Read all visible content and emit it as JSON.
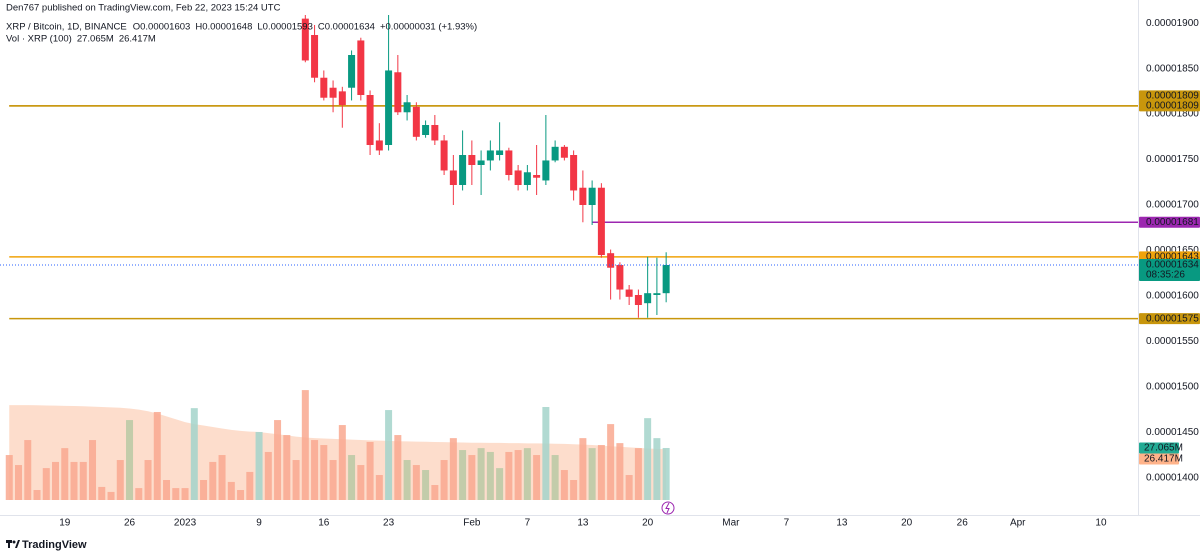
{
  "chart_data": {
    "type": "candlestick",
    "header": {
      "publisher": "Den767 published on TradingView.com, Feb 22, 2023 15:24 UTC",
      "symbol": "XRP / Bitcoin, 1D, BINANCE",
      "ohlc": [
        "O0.00001603",
        "H0.00001648",
        "L0.00001593",
        "C0.00001634",
        "+0.00000031 (+1.93%)"
      ],
      "volume_title": "Vol · XRP (100)",
      "volume_label": "27.065M",
      "volume_ma_label": "26.417M"
    },
    "x": [
      "2023-01-14",
      "2023-01-15",
      "2023-01-16",
      "2023-01-17",
      "2023-01-18",
      "2023-01-19",
      "2023-01-20",
      "2023-01-21",
      "2023-01-22",
      "2023-01-23",
      "2023-01-24",
      "2023-01-25",
      "2023-01-26",
      "2023-01-27",
      "2023-01-28",
      "2023-01-29",
      "2023-01-30",
      "2023-01-31",
      "2023-02-01",
      "2023-02-02",
      "2023-02-03",
      "2023-02-04",
      "2023-02-05",
      "2023-02-06",
      "2023-02-07",
      "2023-02-08",
      "2023-02-09",
      "2023-02-10",
      "2023-02-11",
      "2023-02-12",
      "2023-02-13",
      "2023-02-14",
      "2023-02-15",
      "2023-02-16",
      "2023-02-17",
      "2023-02-18",
      "2023-02-19",
      "2023-02-20",
      "2023-02-21",
      "2023-02-22"
    ],
    "open": [
      1.905e-05,
      1.887e-05,
      1.84e-05,
      1.829e-05,
      1.825e-05,
      1.829e-05,
      1.881e-05,
      1.821e-05,
      1.771e-05,
      1.766e-05,
      1.846e-05,
      1.802e-05,
      1.808e-05,
      1.777e-05,
      1.788e-05,
      1.771e-05,
      1.738e-05,
      1.722e-05,
      1.755e-05,
      1.744e-05,
      1.749e-05,
      1.755e-05,
      1.76e-05,
      1.738e-05,
      1.722e-05,
      1.733e-05,
      1.727e-05,
      1.749e-05,
      1.764e-05,
      1.755e-05,
      1.719e-05,
      1.7e-05,
      1.719e-05,
      1.647e-05,
      1.634e-05,
      1.607e-05,
      1.601e-05,
      1.592e-05,
      1.601e-05,
      1.603e-05
    ],
    "high": [
      1.92e-05,
      1.898e-05,
      1.848e-05,
      1.837e-05,
      1.83e-05,
      1.87e-05,
      1.884e-05,
      1.826e-05,
      1.79e-05,
      1.915e-05,
      1.865e-05,
      1.821e-05,
      1.813e-05,
      1.793e-05,
      1.799e-05,
      1.777e-05,
      1.755e-05,
      1.782e-05,
      1.771e-05,
      1.76e-05,
      1.771e-05,
      1.791e-05,
      1.763e-05,
      1.744e-05,
      1.744e-05,
      1.766e-05,
      1.799e-05,
      1.771e-05,
      1.766e-05,
      1.76e-05,
      1.738e-05,
      1.727e-05,
      1.724e-05,
      1.651e-05,
      1.637e-05,
      1.612e-05,
      1.607e-05,
      1.643e-05,
      1.642e-05,
      1.648e-05
    ],
    "low": [
      1.857e-05,
      1.835e-05,
      1.815e-05,
      1.802e-05,
      1.785e-05,
      1.815e-05,
      1.815e-05,
      1.755e-05,
      1.755e-05,
      1.76e-05,
      1.799e-05,
      1.793e-05,
      1.771e-05,
      1.774e-05,
      1.766e-05,
      1.733e-05,
      1.7e-05,
      1.716e-05,
      1.722e-05,
      1.711e-05,
      1.738e-05,
      1.749e-05,
      1.727e-05,
      1.716e-05,
      1.716e-05,
      1.711e-05,
      1.722e-05,
      1.747e-05,
      1.749e-05,
      1.705e-05,
      1.681e-05,
      1.678e-05,
      1.642e-05,
      1.596e-05,
      1.596e-05,
      1.59e-05,
      1.576e-05,
      1.576e-05,
      1.579e-05,
      1.593e-05
    ],
    "close": [
      1.859e-05,
      1.84e-05,
      1.818e-05,
      1.818e-05,
      1.81e-05,
      1.865e-05,
      1.821e-05,
      1.766e-05,
      1.76e-05,
      1.848e-05,
      1.802e-05,
      1.813e-05,
      1.775e-05,
      1.788e-05,
      1.771e-05,
      1.738e-05,
      1.722e-05,
      1.755e-05,
      1.744e-05,
      1.749e-05,
      1.76e-05,
      1.76e-05,
      1.733e-05,
      1.722e-05,
      1.736e-05,
      1.73e-05,
      1.749e-05,
      1.764e-05,
      1.752e-05,
      1.716e-05,
      1.7e-05,
      1.719e-05,
      1.645e-05,
      1.631e-05,
      1.607e-05,
      1.599e-05,
      1.59e-05,
      1.603e-05,
      1.603e-05,
      1.634e-05
    ],
    "up_color": "#089981",
    "down_color": "#f23645",
    "volume": {
      "x": [
        "2022-12-13",
        "2022-12-14",
        "2022-12-15",
        "2022-12-16",
        "2022-12-17",
        "2022-12-18",
        "2022-12-19",
        "2022-12-20",
        "2022-12-21",
        "2022-12-22",
        "2022-12-23",
        "2022-12-24",
        "2022-12-25",
        "2022-12-26",
        "2022-12-27",
        "2022-12-28",
        "2022-12-29",
        "2022-12-30",
        "2022-12-31",
        "2023-01-01",
        "2023-01-02",
        "2023-01-03",
        "2023-01-04",
        "2023-01-05",
        "2023-01-06",
        "2023-01-07",
        "2023-01-08",
        "2023-01-09",
        "2023-01-10",
        "2023-01-11",
        "2023-01-12",
        "2023-01-13",
        "2023-01-14",
        "2023-01-15",
        "2023-01-16",
        "2023-01-17",
        "2023-01-18",
        "2023-01-19",
        "2023-01-20",
        "2023-01-21",
        "2023-01-22",
        "2023-01-23",
        "2023-01-24",
        "2023-01-25",
        "2023-01-26",
        "2023-01-27",
        "2023-01-28",
        "2023-01-29",
        "2023-01-30",
        "2023-01-31",
        "2023-02-01",
        "2023-02-02",
        "2023-02-03",
        "2023-02-04",
        "2023-02-05",
        "2023-02-06",
        "2023-02-07",
        "2023-02-08",
        "2023-02-09",
        "2023-02-10",
        "2023-02-11",
        "2023-02-12",
        "2023-02-13",
        "2023-02-14",
        "2023-02-15",
        "2023-02-16",
        "2023-02-17",
        "2023-02-18",
        "2023-02-19",
        "2023-02-20",
        "2023-02-21",
        "2023-02-22"
      ],
      "values": [
        23400000,
        18200000,
        31200000,
        5200000,
        16600000,
        19800000,
        27000000,
        19800000,
        19800000,
        31200000,
        6800000,
        4200000,
        20800000,
        41600000,
        6200000,
        20800000,
        45800000,
        10400000,
        6200000,
        6200000,
        47800000,
        10400000,
        19800000,
        23400000,
        9400000,
        5200000,
        14600000,
        35400000,
        25000000,
        41600000,
        33800000,
        20800000,
        57200000,
        31200000,
        28600000,
        20800000,
        39000000,
        23400000,
        18200000,
        30200000,
        13000000,
        46800000,
        33800000,
        20800000,
        18200000,
        15600000,
        7800000,
        20800000,
        32200000,
        26000000,
        23400000,
        27000000,
        25000000,
        16600000,
        25000000,
        26000000,
        27000000,
        23400000,
        48400000,
        23400000,
        15600000,
        10400000,
        32200000,
        27000000,
        28600000,
        39500000,
        29600000,
        13000000,
        27000000,
        42600000,
        32200000,
        27065000
      ],
      "colors": [
        "#f9a88f",
        "#f9a88f",
        "#f9a88f",
        "#f9a88f",
        "#f9a88f",
        "#f9a88f",
        "#f9a88f",
        "#f9a88f",
        "#f9a88f",
        "#f9a88f",
        "#f9a88f",
        "#f9a88f",
        "#f9a88f",
        "#b9c9a3",
        "#f9a88f",
        "#f9a88f",
        "#f9a88f",
        "#f9a88f",
        "#f9a88f",
        "#f9a88f",
        "#a3d4ca",
        "#f9a88f",
        "#f9a88f",
        "#f9a88f",
        "#f9a88f",
        "#f9a88f",
        "#f9a88f",
        "#a3d4ca",
        "#f9a88f",
        "#f9a88f",
        "#f9a88f",
        "#f9a88f",
        "#f9a88f",
        "#f9a88f",
        "#f9a88f",
        "#f9a88f",
        "#f9a88f",
        "#b9c9a3",
        "#f9a88f",
        "#f9a88f",
        "#f9a88f",
        "#a3d4ca",
        "#f9a88f",
        "#b9c9a3",
        "#f9a88f",
        "#b9c9a3",
        "#f9a88f",
        "#f9a88f",
        "#f9a88f",
        "#b9c9a3",
        "#f9a88f",
        "#b9c9a3",
        "#b9c9a3",
        "#b9c9a3",
        "#f9a88f",
        "#f9a88f",
        "#b9c9a3",
        "#f9a88f",
        "#a3d4ca",
        "#b9c9a3",
        "#f9a88f",
        "#f9a88f",
        "#f9a88f",
        "#b9c9a3",
        "#f9a88f",
        "#f9a88f",
        "#f9a88f",
        "#f9a88f",
        "#f9a88f",
        "#a3d4ca",
        "#a3d4ca",
        "#a3d4ca"
      ],
      "ma": [
        49400000,
        49400000,
        49400000,
        49300000,
        49200000,
        49100000,
        49000000,
        48900000,
        48800000,
        48600000,
        48400000,
        48200000,
        48000000,
        47600000,
        47000000,
        46200000,
        45000000,
        43500000,
        42000000,
        40500000,
        39500000,
        38800000,
        38000000,
        37200000,
        36500000,
        36000000,
        35600000,
        35400000,
        34800000,
        34200000,
        33600000,
        33000000,
        32500000,
        32200000,
        32000000,
        31800000,
        31600000,
        31400000,
        31200000,
        31000000,
        30900000,
        30800000,
        30600000,
        30500000,
        30400000,
        30300000,
        30200000,
        30100000,
        30000000,
        29900000,
        29800000,
        29800000,
        29700000,
        29700000,
        29600000,
        29600000,
        29500000,
        29500000,
        29400000,
        29300000,
        29200000,
        29000000,
        28800000,
        28600000,
        28300000,
        28000000,
        27700000,
        27400000,
        27100000,
        26800000,
        26600000,
        26417000
      ],
      "ma_color": "#fcd5bf",
      "color": "#22ab94"
    },
    "xlim": [
      "2022-12-12",
      "2023-04-14"
    ],
    "xticks": [
      {
        "value": "2022-12-19",
        "label": "19"
      },
      {
        "value": "2022-12-26",
        "label": "26"
      },
      {
        "value": "2023-01-01",
        "label": "2023"
      },
      {
        "value": "2023-01-09",
        "label": "9"
      },
      {
        "value": "2023-01-16",
        "label": "16"
      },
      {
        "value": "2023-01-23",
        "label": "23"
      },
      {
        "value": "2023-02-01",
        "label": "Feb"
      },
      {
        "value": "2023-02-07",
        "label": "7"
      },
      {
        "value": "2023-02-13",
        "label": "13"
      },
      {
        "value": "2023-02-20",
        "label": "20"
      },
      {
        "value": "2023-03-01",
        "label": "Mar"
      },
      {
        "value": "2023-03-07",
        "label": "7"
      },
      {
        "value": "2023-03-13",
        "label": "13"
      },
      {
        "value": "2023-03-20",
        "label": "20"
      },
      {
        "value": "2023-03-26",
        "label": "26"
      },
      {
        "value": "2023-04-01",
        "label": "Apr"
      },
      {
        "value": "2023-04-10",
        "label": "10"
      }
    ],
    "ylim": [
      1.359e-05,
      1.909e-05
    ],
    "yticks": [
      {
        "value": 1.9e-05,
        "label": "0.00001900"
      },
      {
        "value": 1.85e-05,
        "label": "0.00001850"
      },
      {
        "value": 1.8e-05,
        "label": "0.00001800"
      },
      {
        "value": 1.75e-05,
        "label": "0.00001750"
      },
      {
        "value": 1.7e-05,
        "label": "0.00001700"
      },
      {
        "value": 1.65e-05,
        "label": "0.00001650"
      },
      {
        "value": 1.6e-05,
        "label": "0.00001600"
      },
      {
        "value": 1.55e-05,
        "label": "0.00001550"
      },
      {
        "value": 1.5e-05,
        "label": "0.00001500"
      },
      {
        "value": 1.45e-05,
        "label": "0.00001450"
      },
      {
        "value": 1.4e-05,
        "label": "0.00001400"
      }
    ],
    "y2lim": [
      0,
      252400000
    ],
    "hlines": [
      {
        "value": 1.809e-05,
        "label": "0.00001809",
        "color": "#c8960c",
        "start": "2022-12-13"
      },
      {
        "value": 1.809e-05,
        "label": "0.00001809",
        "color": "#c8960c",
        "start": "2022-12-13"
      },
      {
        "value": 1.681e-05,
        "label": "0.00001681",
        "color": "#9c27b0",
        "start": "2023-02-14"
      },
      {
        "value": 1.643e-05,
        "label": "0.00001643",
        "color": "#f0a30a",
        "start": "2022-12-13"
      },
      {
        "value": 1.575e-05,
        "label": "0.00001575",
        "color": "#c8960c",
        "start": "2022-12-13"
      }
    ],
    "countdown": "08:35:26",
    "price_line_color": "#2962ff",
    "footer": "TradingView"
  }
}
